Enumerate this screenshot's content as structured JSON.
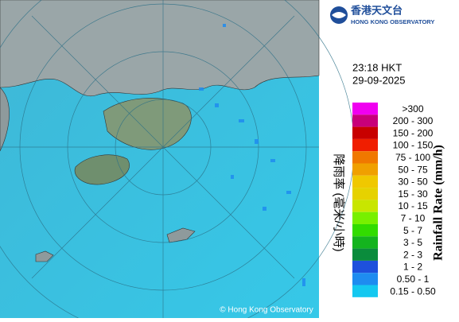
{
  "logo": {
    "name_zh": "香港天文台",
    "name_en": "HONG KONG OBSERVATORY"
  },
  "time": "23:18 HKT",
  "date": "29-09-2025",
  "legend": {
    "title_zh": "降雨率 (毫米/小時)",
    "title_en": "Rainfall Rate (mm/h)",
    "items": [
      {
        "label": ">300",
        "color": "#f000f0"
      },
      {
        "label": "200 - 300",
        "color": "#c8007a"
      },
      {
        "label": "150 - 200",
        "color": "#c80000"
      },
      {
        "label": "100 - 150",
        "color": "#f01e00"
      },
      {
        "label": "75 - 100",
        "color": "#f07800"
      },
      {
        "label": "50 - 75",
        "color": "#f0a000"
      },
      {
        "label": "30 - 50",
        "color": "#f0c800"
      },
      {
        "label": "15 - 30",
        "color": "#e6d200"
      },
      {
        "label": "10 - 15",
        "color": "#c8e600"
      },
      {
        "label": "7 - 10",
        "color": "#78f000"
      },
      {
        "label": "5 - 7",
        "color": "#32dc00"
      },
      {
        "label": "3 - 5",
        "color": "#14b41e"
      },
      {
        "label": "2 - 3",
        "color": "#0a8c3c"
      },
      {
        "label": "1 - 2",
        "color": "#1e50dc"
      },
      {
        "label": "0.50 - 1",
        "color": "#1e8cf0"
      },
      {
        "label": "0.15 - 0.50",
        "color": "#14c8f0"
      }
    ]
  },
  "copyright": "© Hong Kong Observatory"
}
